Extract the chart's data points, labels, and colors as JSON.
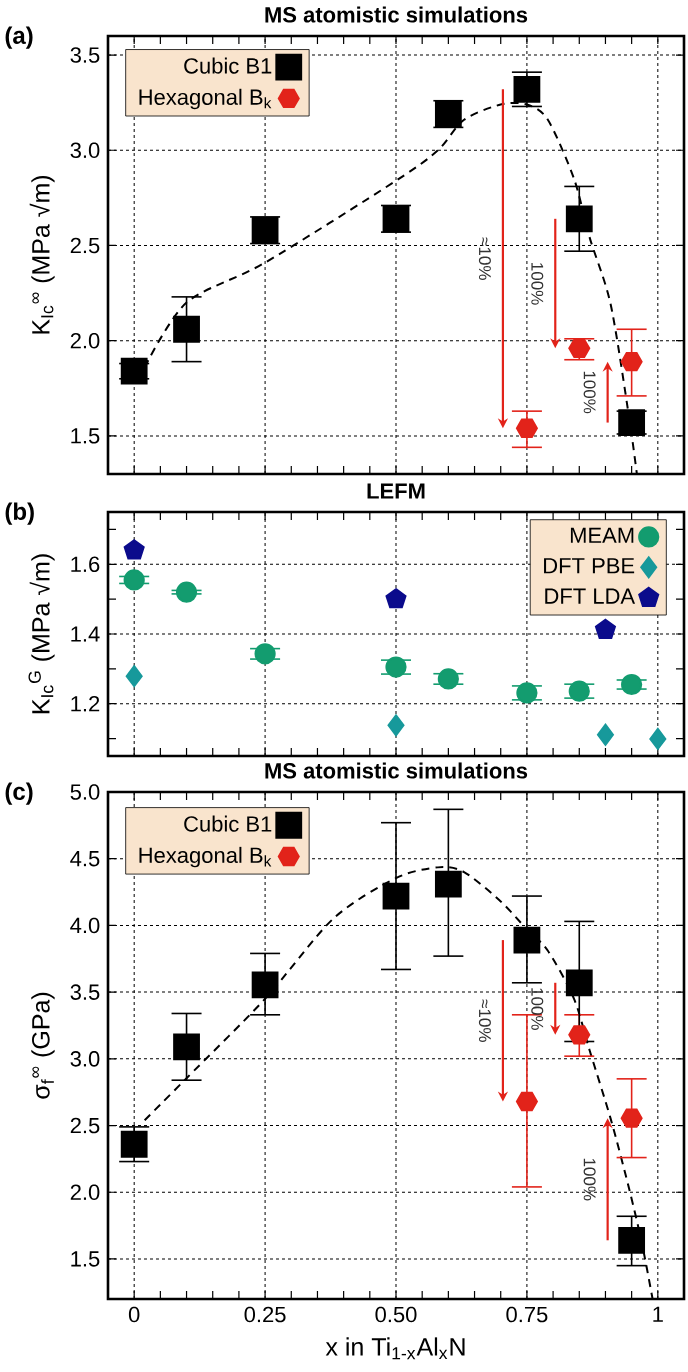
{
  "chart_data": [
    {
      "type": "scatter",
      "title": "MS atomistic simulations",
      "ylabel": "K$_{Ic}$$^{∞}$ (MPa √m)",
      "annotations": [
        "(a)",
        "≈10%",
        "100%",
        "100%"
      ],
      "xlim": [
        -0.05,
        1.05
      ],
      "xticks": [
        0,
        {
          "value": 0.05,
          "label": null
        },
        {
          "value": 0.1,
          "label": null
        },
        {
          "value": 0.15,
          "label": null
        },
        {
          "value": 0.2,
          "label": null
        },
        0.25,
        {
          "value": 0.3,
          "label": null
        },
        {
          "value": 0.35,
          "label": null
        },
        {
          "value": 0.4,
          "label": null
        },
        {
          "value": 0.45,
          "label": null
        },
        0.5,
        {
          "value": 0.55,
          "label": null
        },
        {
          "value": 0.6,
          "label": null
        },
        {
          "value": 0.65,
          "label": null
        },
        {
          "value": 0.7,
          "label": null
        },
        0.75,
        {
          "value": 0.8,
          "label": null
        },
        {
          "value": 0.85,
          "label": null
        },
        {
          "value": 0.9,
          "label": null
        },
        {
          "value": 0.95,
          "label": null
        },
        1
      ],
      "ylim": [
        1.3,
        3.6
      ],
      "yticks": [
        1.5,
        {
          "value": 2.0,
          "label": "2.0"
        },
        2.5,
        {
          "value": 3.0,
          "label": "3.0"
        },
        3.5
      ],
      "grid": true,
      "legend": "top left",
      "tick_labels": "y",
      "series": [
        {
          "name": "Cubic B1",
          "color": "#000000",
          "marker": "square",
          "x": [
            0,
            0.1,
            0.25,
            0.5,
            0.6,
            0.75,
            0.85,
            0.95
          ],
          "values": [
            1.84,
            2.06,
            2.58,
            2.64,
            3.19,
            3.32,
            2.64,
            1.57
          ],
          "errors": [
            0.04,
            [
              1.89,
              2.23
            ],
            0.07,
            0.07,
            0.07,
            [
              3.23,
              3.41
            ],
            [
              2.47,
              2.81
            ],
            0.06
          ]
        },
        {
          "name": "Hexagonal B$_{k}$",
          "color": "#e2231a",
          "x": [
            0.75,
            0.85,
            0.95
          ],
          "values": [
            1.54,
            1.96,
            1.89
          ],
          "errors": [
            [
              1.44,
              1.63
            ],
            [
              1.9,
              2.01
            ],
            [
              1.71,
              2.06
            ]
          ]
        },
        {
          "type": "line",
          "color": "#000000",
          "line_style": "dashed",
          "marker": "none",
          "x": [
            0.02,
            0.1,
            0.25,
            0.5,
            0.58,
            0.63,
            0.7,
            0.75,
            0.79,
            0.84,
            0.87,
            0.91,
            0.945,
            0.96
          ],
          "values": [
            1.86,
            2.2,
            2.41,
            2.84,
            3.0,
            3.16,
            3.24,
            3.24,
            3.16,
            2.85,
            2.54,
            2.19,
            1.6,
            1.3
          ]
        }
      ]
    },
    {
      "type": "scatter",
      "title": "LEFM",
      "ylabel": "K$_{Ic}$$^{G}$ (MPa √m)",
      "annotations": [
        "(b)"
      ],
      "xlim": [
        -0.05,
        1.05
      ],
      "xticks": [
        0,
        {
          "value": 0.05,
          "label": null
        },
        {
          "value": 0.1,
          "label": null
        },
        {
          "value": 0.15,
          "label": null
        },
        {
          "value": 0.2,
          "label": null
        },
        0.25,
        {
          "value": 0.3,
          "label": null
        },
        {
          "value": 0.35,
          "label": null
        },
        {
          "value": 0.4,
          "label": null
        },
        {
          "value": 0.45,
          "label": null
        },
        0.5,
        {
          "value": 0.55,
          "label": null
        },
        {
          "value": 0.6,
          "label": null
        },
        {
          "value": 0.65,
          "label": null
        },
        {
          "value": 0.7,
          "label": null
        },
        0.75,
        {
          "value": 0.8,
          "label": null
        },
        {
          "value": 0.85,
          "label": null
        },
        {
          "value": 0.9,
          "label": null
        },
        {
          "value": 0.95,
          "label": null
        },
        1
      ],
      "ylim": [
        1.05,
        1.75
      ],
      "yticks": [
        {
          "value": 1.1,
          "label": null
        },
        1.2,
        {
          "value": 1.3,
          "label": null
        },
        1.4,
        {
          "value": 1.5,
          "label": null
        },
        1.6,
        {
          "value": 1.7,
          "label": null
        }
      ],
      "grid": true,
      "legend": "top right",
      "tick_labels": "y",
      "series": [
        {
          "name": "MEAM",
          "color": "#139c6f",
          "marker": "circle",
          "x": [
            0,
            0.1,
            0.25,
            0.5,
            0.6,
            0.75,
            0.85,
            0.95
          ],
          "values": [
            1.555,
            1.52,
            1.343,
            1.305,
            1.271,
            1.231,
            1.236,
            1.255
          ],
          "errors": [
            0.01,
            0.005,
            0.015,
            0.02,
            0.015,
            0.02,
            0.02,
            0.013
          ]
        },
        {
          "name": "DFT PBE",
          "color": "#17999b",
          "marker": "diamond",
          "x": [
            0,
            0.5,
            0.9,
            1.0
          ],
          "values": [
            1.279,
            1.138,
            1.111,
            1.099
          ]
        },
        {
          "name": "DFT LDA",
          "color": "#0b0b8c",
          "x": [
            0,
            0.5,
            0.9
          ],
          "values": [
            1.64,
            1.5,
            1.412
          ]
        }
      ]
    },
    {
      "type": "scatter",
      "title": "MS atomistic simulations",
      "xlabel": "x in Ti$_{1-x}$Al$_{x}$N",
      "ylabel": "σ$_{f}$$^{∞}$ (GPa)",
      "annotations": [
        "(c)",
        "≈10%",
        "100%",
        "100%"
      ],
      "xlim": [
        -0.05,
        1.05
      ],
      "xticks": [
        0,
        {
          "value": 0.05,
          "label": null
        },
        {
          "value": 0.1,
          "label": null
        },
        {
          "value": 0.15,
          "label": null
        },
        {
          "value": 0.2,
          "label": null
        },
        0.25,
        {
          "value": 0.3,
          "label": null
        },
        {
          "value": 0.35,
          "label": null
        },
        {
          "value": 0.4,
          "label": null
        },
        {
          "value": 0.45,
          "label": null
        },
        {
          "value": 0.5,
          "label": "0.50"
        },
        {
          "value": 0.55,
          "label": null
        },
        {
          "value": 0.6,
          "label": null
        },
        {
          "value": 0.65,
          "label": null
        },
        {
          "value": 0.7,
          "label": null
        },
        0.75,
        {
          "value": 0.8,
          "label": null
        },
        {
          "value": 0.85,
          "label": null
        },
        {
          "value": 0.9,
          "label": null
        },
        {
          "value": 0.95,
          "label": null
        },
        1
      ],
      "ylim": [
        1.2,
        5.0
      ],
      "yticks": [
        1.5,
        {
          "value": 2.0,
          "label": "2.0"
        },
        2.5,
        {
          "value": 3.0,
          "label": "3.0"
        },
        3.5,
        {
          "value": 4.0,
          "label": "4.0"
        },
        4.5,
        {
          "value": 5.0,
          "label": "5.0"
        }
      ],
      "grid": true,
      "legend": "top left",
      "series": [
        {
          "name": "Cubic B1",
          "color": "#000000",
          "marker": "square",
          "x": [
            0,
            0.1,
            0.25,
            0.5,
            0.6,
            0.75,
            0.85,
            0.95
          ],
          "values": [
            2.36,
            3.09,
            3.555,
            4.22,
            4.31,
            3.89,
            3.57,
            1.64
          ],
          "errors": [
            [
              2.23,
              2.49
            ],
            [
              2.84,
              3.34
            ],
            [
              3.33,
              3.79
            ],
            [
              3.67,
              4.77
            ],
            [
              3.77,
              4.87
            ],
            [
              3.57,
              4.22
            ],
            [
              3.13,
              4.03
            ],
            [
              1.45,
              1.82
            ]
          ]
        },
        {
          "name": "Hexagonal B$_{k}$",
          "color": "#e2231a",
          "x": [
            0.75,
            0.85,
            0.95
          ],
          "values": [
            2.68,
            3.18,
            2.555
          ],
          "errors": [
            [
              2.04,
              3.33
            ],
            [
              3.02,
              3.33
            ],
            [
              2.26,
              2.85
            ]
          ]
        },
        {
          "type": "line",
          "color": "#000000",
          "line_style": "dashed",
          "marker": "none",
          "x": [
            0.02,
            0.1,
            0.25,
            0.38,
            0.5,
            0.58,
            0.63,
            0.7,
            0.75,
            0.79,
            0.84,
            0.87,
            0.91,
            0.945,
            0.97,
            0.99
          ],
          "values": [
            2.54,
            2.855,
            3.45,
            4.05,
            4.355,
            4.435,
            4.4,
            4.18,
            3.97,
            3.81,
            3.45,
            3.06,
            2.55,
            2.03,
            1.61,
            1.2
          ]
        }
      ]
    }
  ]
}
